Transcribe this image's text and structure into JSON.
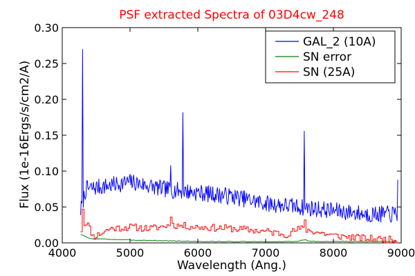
{
  "chart_data": {
    "type": "line",
    "title": "PSF extracted Spectra of 03D4cw_248",
    "title_color": "#ff0000",
    "xlabel": "Wavelength (Ang.)",
    "ylabel": "Flux (1e-16Ergs/s/cm2/A)",
    "xlim": [
      4000,
      9000
    ],
    "ylim": [
      0.0,
      0.3
    ],
    "xticks": [
      4000,
      5000,
      6000,
      7000,
      8000,
      9000
    ],
    "xtick_labels": [
      "4000",
      "5000",
      "6000",
      "7000",
      "8000",
      "9000"
    ],
    "yticks": [
      0.0,
      0.05,
      0.1,
      0.15,
      0.2,
      0.25,
      0.3
    ],
    "ytick_labels": [
      "0.00",
      "0.05",
      "0.10",
      "0.15",
      "0.20",
      "0.25",
      "0.30"
    ],
    "grid": false,
    "legend_position": "top-right",
    "series": [
      {
        "name": "GAL_2 (10A)",
        "color": "#0000ff",
        "style": "noisy",
        "x_range": [
          4270,
          8950
        ],
        "step": 10,
        "seed": 7,
        "noise": 0.012,
        "baseline": [
          [
            4270,
            0.045
          ],
          [
            4350,
            0.075
          ],
          [
            4700,
            0.08
          ],
          [
            5000,
            0.085
          ],
          [
            5500,
            0.075
          ],
          [
            6000,
            0.07
          ],
          [
            6500,
            0.065
          ],
          [
            7000,
            0.055
          ],
          [
            7500,
            0.05
          ],
          [
            8000,
            0.045
          ],
          [
            8500,
            0.04
          ],
          [
            8950,
            0.04
          ]
        ],
        "peaks": [
          {
            "x": 4300,
            "y": 0.27
          },
          {
            "x": 5780,
            "y": 0.182
          },
          {
            "x": 7570,
            "y": 0.156
          },
          {
            "x": 5600,
            "y": 0.108
          },
          {
            "x": 8950,
            "y": 0.088
          }
        ]
      },
      {
        "name": "SN error",
        "color": "#008000",
        "style": "smooth",
        "x_range": [
          4270,
          8950
        ],
        "step": 25,
        "seed": 3,
        "noise": 0.0005,
        "baseline": [
          [
            4270,
            0.012
          ],
          [
            4400,
            0.006
          ],
          [
            5000,
            0.004
          ],
          [
            6000,
            0.002
          ],
          [
            7000,
            0.0015
          ],
          [
            7400,
            0.002
          ],
          [
            7600,
            0.004
          ],
          [
            7650,
            0.002
          ],
          [
            8950,
            0.002
          ]
        ],
        "peaks": []
      },
      {
        "name": "SN (25A)",
        "color": "#ff0000",
        "style": "step",
        "x_range": [
          4270,
          8950
        ],
        "step": 25,
        "seed": 11,
        "noise": 0.005,
        "baseline": [
          [
            4270,
            0.018
          ],
          [
            4350,
            0.03
          ],
          [
            4450,
            0.008
          ],
          [
            4700,
            0.02
          ],
          [
            5000,
            0.022
          ],
          [
            5300,
            0.02
          ],
          [
            5600,
            0.025
          ],
          [
            6000,
            0.022
          ],
          [
            6500,
            0.02
          ],
          [
            7000,
            0.016
          ],
          [
            7300,
            0.012
          ],
          [
            7500,
            0.02
          ],
          [
            8000,
            0.01
          ],
          [
            8500,
            0.006
          ],
          [
            8950,
            0.004
          ]
        ],
        "peaks": [
          {
            "x": 4300,
            "y": 0.047
          },
          {
            "x": 5600,
            "y": 0.036
          },
          {
            "x": 7570,
            "y": 0.032
          }
        ]
      }
    ]
  }
}
